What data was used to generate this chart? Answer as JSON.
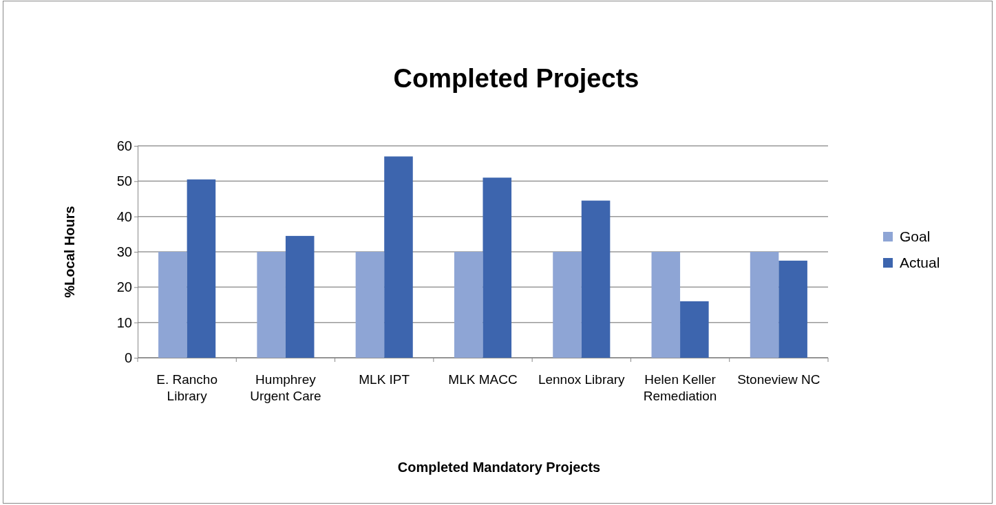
{
  "chart_data": {
    "type": "bar",
    "title": "Completed Projects",
    "xlabel": "Completed Mandatory Projects",
    "ylabel": "%Local Hours",
    "categories": [
      "E. Rancho Library",
      "Humphrey Urgent Care",
      "MLK IPT",
      "MLK MACC",
      "Lennox Library",
      "Helen Keller Remediation",
      "Stoneview NC"
    ],
    "series": [
      {
        "name": "Goal",
        "color": "#8ea5d5",
        "values": [
          30,
          30,
          30,
          30,
          30,
          30,
          30
        ]
      },
      {
        "name": "Actual",
        "color": "#3d65ae",
        "values": [
          50.5,
          34.5,
          57,
          51,
          44.5,
          16,
          27.5
        ]
      }
    ],
    "ylim": [
      0,
      60
    ],
    "yticks": [
      0,
      10,
      20,
      30,
      40,
      50,
      60
    ],
    "grid": "y",
    "legend": "right"
  }
}
